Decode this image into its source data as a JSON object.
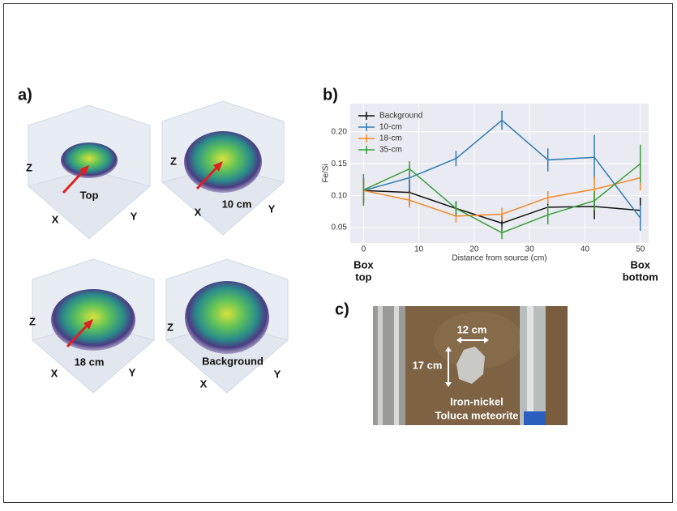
{
  "figure_labels": [
    "a)",
    "b)",
    "c)"
  ],
  "panel_a": {
    "plots": [
      {
        "label": "Top",
        "axes": {
          "x": "X",
          "y": "Y",
          "z": "Z"
        }
      },
      {
        "label": "10 cm",
        "axes": {
          "x": "X",
          "y": "Y",
          "z": "Z"
        }
      },
      {
        "label": "18 cm",
        "axes": {
          "x": "X",
          "y": "Y",
          "z": "Z"
        }
      },
      {
        "label": "Background",
        "axes": {
          "x": "X",
          "y": "Y",
          "z": "Z"
        }
      }
    ]
  },
  "panel_c": {
    "width": "12 cm",
    "height": "17 cm",
    "caption": [
      "Iron-nickel",
      "Toluca meteorite"
    ]
  },
  "chart_data": {
    "type": "line",
    "xlabel": "Distance from source (cm)",
    "ylabel": "Fe/Si",
    "x": [
      0,
      8.3,
      16.7,
      25,
      33.3,
      41.7,
      50
    ],
    "series": [
      {
        "name": "Background",
        "color": "#111111",
        "values": [
          0.108,
          0.105,
          0.08,
          0.057,
          0.082,
          0.083,
          0.077
        ],
        "errors": [
          0.02,
          0.02,
          0.01,
          0.012,
          0.01,
          0.02,
          0.02
        ]
      },
      {
        "name": "10-cm",
        "color": "#2f7db5",
        "values": [
          0.108,
          0.128,
          0.158,
          0.218,
          0.156,
          0.16,
          0.065
        ],
        "errors": [
          0.02,
          0.02,
          0.012,
          0.015,
          0.018,
          0.035,
          0.02
        ]
      },
      {
        "name": "18-cm",
        "color": "#f5892a",
        "values": [
          0.108,
          0.093,
          0.068,
          0.071,
          0.097,
          0.11,
          0.128
        ],
        "errors": [
          0.015,
          0.012,
          0.01,
          0.01,
          0.01,
          0.02,
          0.02
        ]
      },
      {
        "name": "35-cm",
        "color": "#3a9e3a",
        "values": [
          0.109,
          0.142,
          0.08,
          0.042,
          0.07,
          0.092,
          0.15
        ],
        "errors": [
          0.025,
          0.012,
          0.012,
          0.01,
          0.015,
          0.015,
          0.03
        ]
      }
    ],
    "xlim": [
      -2.4,
      51.5
    ],
    "ylim": [
      0.026,
      0.244
    ],
    "xticks": [
      0,
      10,
      20,
      30,
      40,
      50
    ],
    "yticks": [
      0.05,
      {
        "value": 0.1,
        "label": "0.10"
      },
      0.15,
      {
        "value": 0.2,
        "label": "0.20"
      }
    ],
    "grid": true,
    "legend": "upper left",
    "annotations": [
      {
        "x": 0,
        "lines": [
          "Box",
          "top"
        ]
      },
      {
        "x": 50,
        "lines": [
          "Box",
          "bottom"
        ]
      }
    ]
  }
}
